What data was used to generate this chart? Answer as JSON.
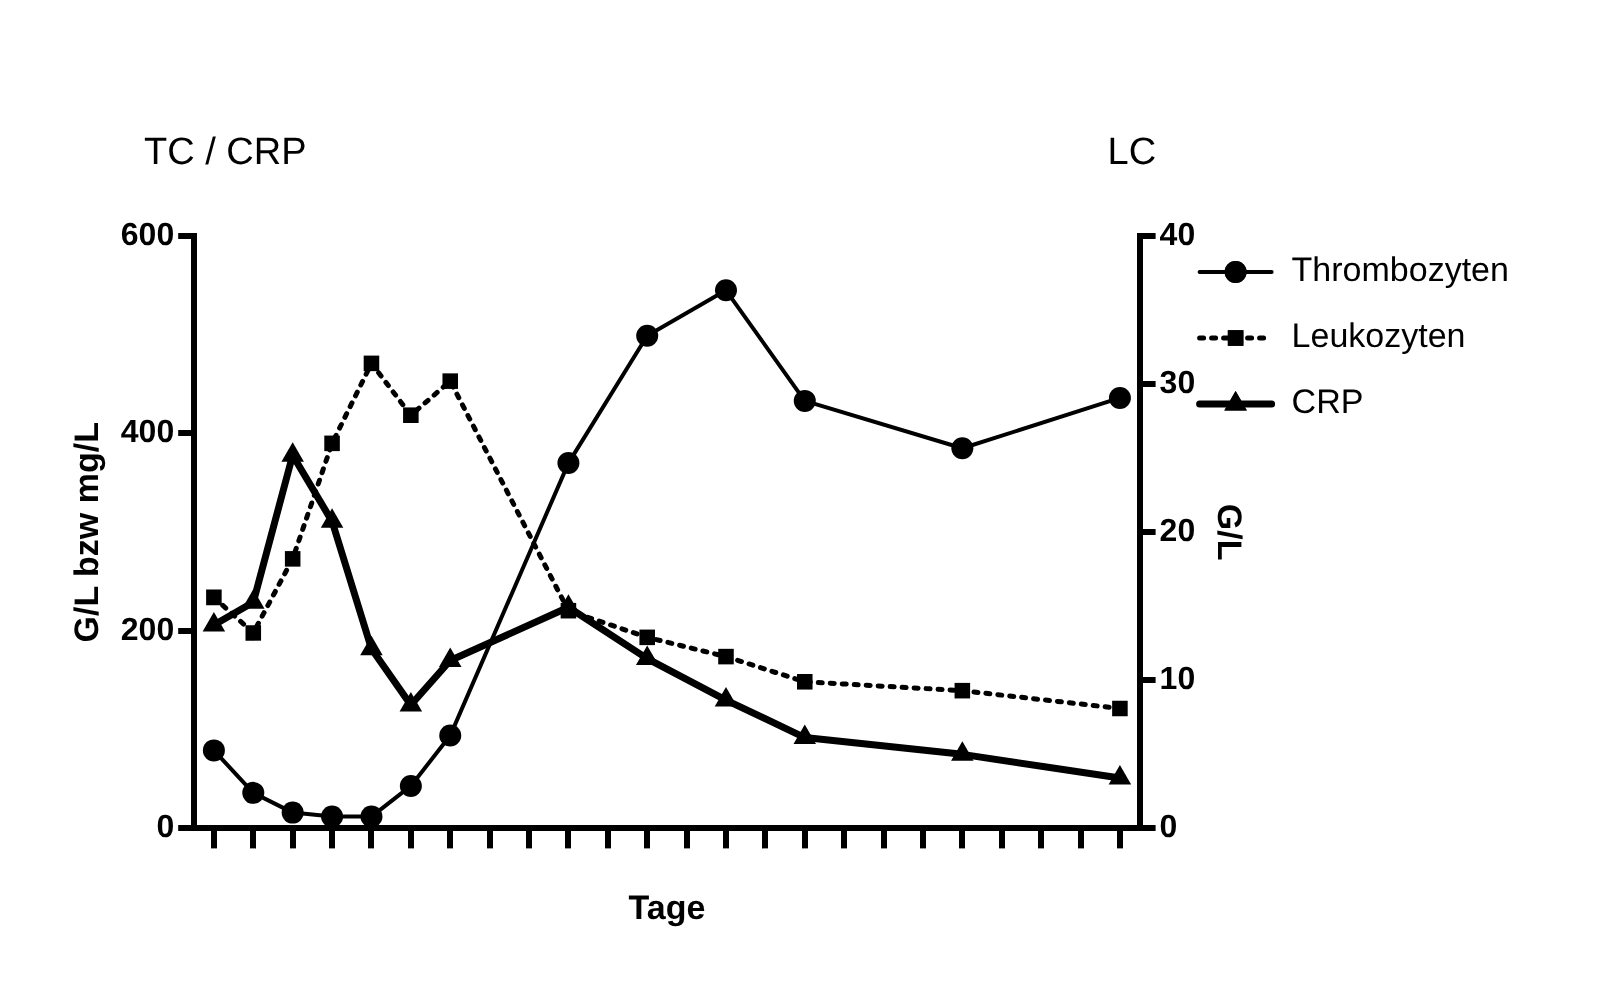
{
  "chart_data": {
    "type": "line",
    "xlabel": "Tage",
    "ylabel": "G/L bzw mg/L",
    "y2label": "G/L",
    "annotations": [
      "TC / CRP",
      "LC"
    ],
    "categories": [
      null,
      null,
      null,
      null,
      null,
      null,
      null,
      null,
      null,
      null,
      null,
      null,
      null,
      null,
      null,
      null,
      null,
      null,
      null,
      null,
      null,
      null,
      null,
      null
    ],
    "series": [
      {
        "name": "Thrombozyten",
        "color": "#000000",
        "marker": "circle",
        "line_style": "solid",
        "values": [
          79,
          36,
          16,
          12,
          12,
          43,
          94,
          null,
          null,
          370,
          null,
          499,
          null,
          545,
          null,
          433,
          null,
          null,
          null,
          385,
          null,
          null,
          null,
          436
        ]
      },
      {
        "name": "Leukozyten",
        "color": "#000000",
        "marker": "square",
        "line_style": "dotted",
        "axis": "y2",
        "values": [
          15.6,
          13.2,
          18.2,
          26,
          31.4,
          27.9,
          30.2,
          null,
          null,
          14.7,
          null,
          12.9,
          null,
          11.6,
          null,
          9.9,
          null,
          null,
          null,
          9.3,
          null,
          null,
          null,
          8.1
        ]
      },
      {
        "name": "CRP",
        "color": "#000000",
        "marker": "triangle",
        "line_style": "solid",
        "values": [
          206,
          229,
          378,
          311,
          182,
          125,
          170,
          null,
          null,
          224,
          null,
          172,
          null,
          130,
          null,
          92,
          null,
          null,
          null,
          75,
          null,
          null,
          null,
          51
        ]
      }
    ],
    "ylim": [
      0,
      600
    ],
    "yticks": [
      0,
      200,
      400,
      600
    ],
    "y2lim": [
      0,
      40
    ],
    "y2ticks": [
      0,
      10,
      20,
      30,
      40
    ],
    "grid": false,
    "legend": "top right"
  }
}
